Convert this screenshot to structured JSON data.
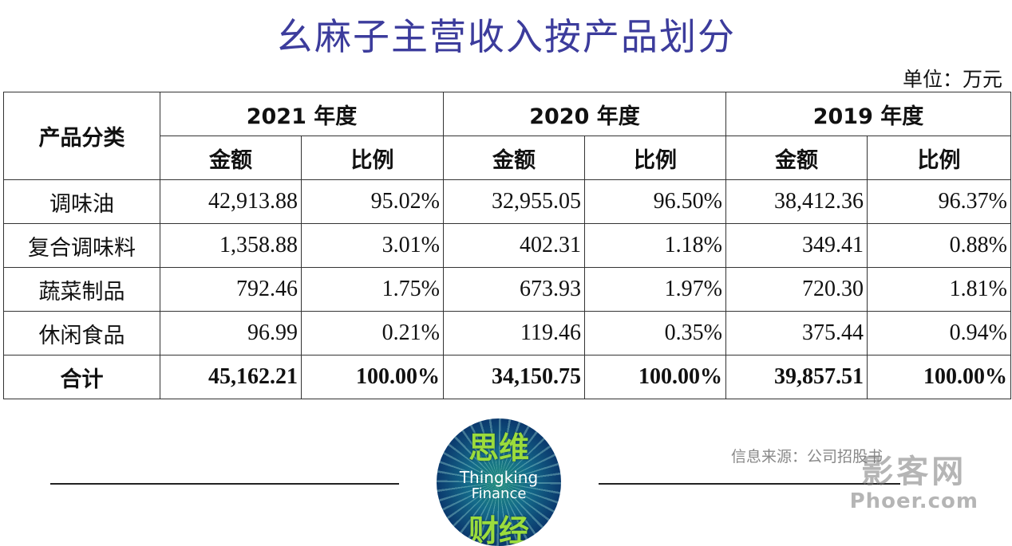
{
  "title": "幺麻子主营收入按产品划分",
  "unit": "单位：万元",
  "table": {
    "category_header": "产品分类",
    "years": [
      {
        "year": "2021",
        "suffix": "年度"
      },
      {
        "year": "2020",
        "suffix": "年度"
      },
      {
        "year": "2019",
        "suffix": "年度"
      }
    ],
    "amount_label": "金额",
    "ratio_label": "比例",
    "rows": [
      {
        "category": "调味油",
        "cells": [
          "42,913.88",
          "95.02%",
          "32,955.05",
          "96.50%",
          "38,412.36",
          "96.37%"
        ]
      },
      {
        "category": "复合调味料",
        "cells": [
          "1,358.88",
          "3.01%",
          "402.31",
          "1.18%",
          "349.41",
          "0.88%"
        ]
      },
      {
        "category": "蔬菜制品",
        "cells": [
          "792.46",
          "1.75%",
          "673.93",
          "1.97%",
          "720.30",
          "1.81%"
        ]
      },
      {
        "category": "休闲食品",
        "cells": [
          "96.99",
          "0.21%",
          "119.46",
          "0.35%",
          "375.44",
          "0.94%"
        ]
      }
    ],
    "total": {
      "category": "合计",
      "cells": [
        "45,162.21",
        "100.00%",
        "34,150.75",
        "100.00%",
        "39,857.51",
        "100.00%"
      ]
    }
  },
  "source": "信息来源：公司招股书",
  "logo": {
    "cn_top": "思维",
    "en_line1": "Thingking",
    "en_line2": "Finance",
    "cn_bottom": "财经"
  },
  "watermark": {
    "line1": "影客网",
    "line2": "Phoer.com"
  }
}
